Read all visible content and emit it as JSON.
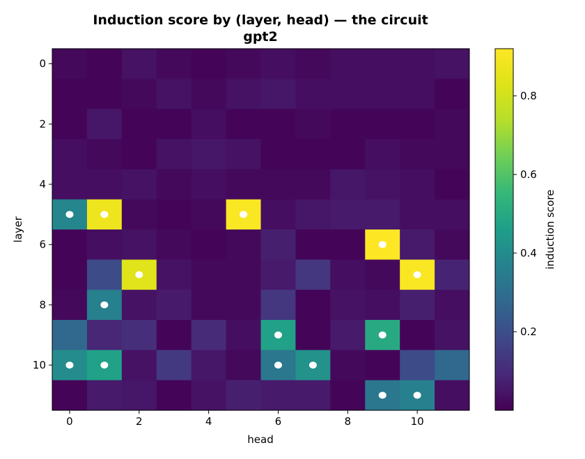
{
  "chart_data": {
    "type": "heatmap",
    "title": "Induction score by (layer, head) — the circuit",
    "subtitle": "gpt2",
    "xlabel": "head",
    "ylabel": "layer",
    "colorbar_label": "induction score",
    "colormap": "viridis",
    "x_ticks": [
      "0",
      "2",
      "4",
      "6",
      "8",
      "10"
    ],
    "y_ticks": [
      "0",
      "2",
      "4",
      "6",
      "8",
      "10"
    ],
    "colorbar_ticks": [
      "0.2",
      "0.4",
      "0.6",
      "0.8"
    ],
    "colorbar_range": [
      0.0,
      0.92
    ],
    "heads": [
      0,
      1,
      2,
      3,
      4,
      5,
      6,
      7,
      8,
      9,
      10,
      11
    ],
    "layers": [
      0,
      1,
      2,
      3,
      4,
      5,
      6,
      7,
      8,
      9,
      10,
      11
    ],
    "values": [
      [
        0.02,
        0.01,
        0.04,
        0.02,
        0.01,
        0.02,
        0.03,
        0.02,
        0.03,
        0.03,
        0.03,
        0.04
      ],
      [
        0.01,
        0.01,
        0.02,
        0.04,
        0.02,
        0.04,
        0.05,
        0.03,
        0.03,
        0.03,
        0.03,
        0.01
      ],
      [
        0.01,
        0.05,
        0.01,
        0.01,
        0.03,
        0.01,
        0.01,
        0.02,
        0.01,
        0.01,
        0.01,
        0.02
      ],
      [
        0.03,
        0.02,
        0.01,
        0.04,
        0.05,
        0.04,
        0.01,
        0.01,
        0.01,
        0.03,
        0.02,
        0.02
      ],
      [
        0.03,
        0.03,
        0.04,
        0.02,
        0.03,
        0.02,
        0.02,
        0.02,
        0.05,
        0.04,
        0.03,
        0.01
      ],
      [
        0.38,
        0.88,
        0.02,
        0.01,
        0.02,
        0.91,
        0.03,
        0.05,
        0.06,
        0.06,
        0.03,
        0.03
      ],
      [
        0.01,
        0.03,
        0.04,
        0.02,
        0.01,
        0.02,
        0.07,
        0.01,
        0.01,
        0.92,
        0.06,
        0.02
      ],
      [
        0.01,
        0.19,
        0.84,
        0.04,
        0.02,
        0.02,
        0.06,
        0.13,
        0.03,
        0.02,
        0.91,
        0.08
      ],
      [
        0.02,
        0.36,
        0.04,
        0.06,
        0.02,
        0.02,
        0.13,
        0.01,
        0.04,
        0.03,
        0.07,
        0.03
      ],
      [
        0.28,
        0.09,
        0.11,
        0.01,
        0.1,
        0.03,
        0.47,
        0.01,
        0.06,
        0.5,
        0.01,
        0.04
      ],
      [
        0.4,
        0.47,
        0.04,
        0.14,
        0.05,
        0.02,
        0.33,
        0.42,
        0.02,
        0.01,
        0.19,
        0.28
      ],
      [
        0.01,
        0.06,
        0.05,
        0.01,
        0.04,
        0.07,
        0.06,
        0.06,
        0.01,
        0.33,
        0.36,
        0.03
      ]
    ],
    "markers": [
      [
        5,
        0
      ],
      [
        5,
        1
      ],
      [
        5,
        5
      ],
      [
        6,
        9
      ],
      [
        7,
        2
      ],
      [
        7,
        10
      ],
      [
        8,
        1
      ],
      [
        9,
        6
      ],
      [
        9,
        9
      ],
      [
        10,
        0
      ],
      [
        10,
        1
      ],
      [
        10,
        6
      ],
      [
        10,
        7
      ],
      [
        11,
        9
      ],
      [
        11,
        10
      ]
    ],
    "marker_color": "#ffffff"
  }
}
